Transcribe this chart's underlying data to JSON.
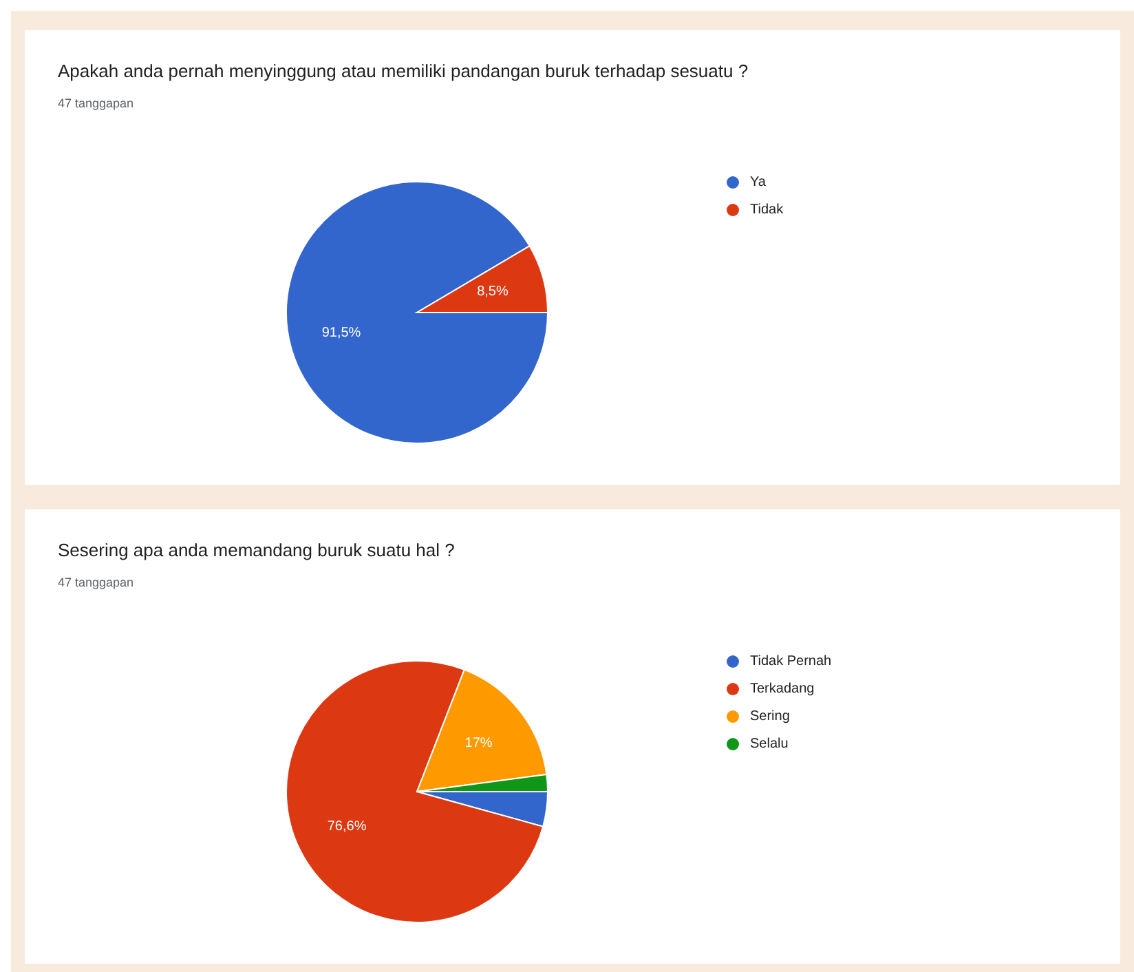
{
  "chart_data": [
    {
      "type": "pie",
      "title": "Apakah anda pernah menyinggung atau memiliki pandangan buruk terhadap sesuatu ?",
      "subtitle": "47 tanggapan",
      "categories": [
        "Ya",
        "Tidak"
      ],
      "values": [
        91.5,
        8.5
      ],
      "colors": [
        "#3366cc",
        "#dc3912"
      ],
      "value_labels": [
        "91,5%",
        "8,5%"
      ],
      "legend": "right"
    },
    {
      "type": "pie",
      "title": "Sesering apa anda memandang buruk suatu hal ?",
      "subtitle": "47 tanggapan",
      "categories": [
        "Tidak Pernah",
        "Terkadang",
        "Sering",
        "Selalu"
      ],
      "values": [
        4.3,
        76.6,
        17,
        2.1
      ],
      "colors": [
        "#3366cc",
        "#dc3912",
        "#ff9900",
        "#109618"
      ],
      "value_labels": [
        null,
        "76,6%",
        "17%",
        null
      ],
      "legend": "right"
    }
  ]
}
